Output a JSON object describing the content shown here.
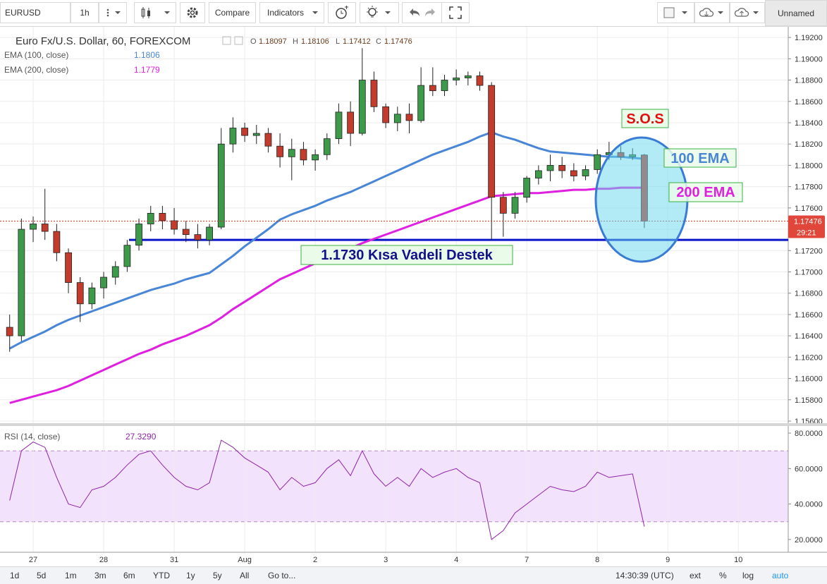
{
  "toolbar": {
    "symbol": "EURUSD",
    "interval": "1h",
    "compare": "Compare",
    "indicators": "Indicators",
    "layout": "Unnamed"
  },
  "bottom_bar": {
    "ranges": [
      "1d",
      "5d",
      "1m",
      "3m",
      "6m",
      "YTD",
      "1y",
      "5y",
      "All"
    ],
    "goto": "Go to...",
    "time": "14:30:39 (UTC)",
    "options": [
      "ext",
      "%",
      "log",
      "auto"
    ]
  },
  "chart_data": [
    {
      "type": "candlestick",
      "title": "Euro Fx/U.S. Dollar, 60, FOREXCOM",
      "ohlc_labels": [
        "O",
        "H",
        "L",
        "C"
      ],
      "categories": [
        null,
        null,
        "27",
        null,
        null,
        null,
        null,
        null,
        "28",
        null,
        null,
        null,
        null,
        null,
        "31",
        null,
        null,
        null,
        null,
        null,
        "Aug",
        null,
        null,
        null,
        null,
        null,
        "2",
        null,
        null,
        null,
        null,
        null,
        "3",
        null,
        null,
        null,
        null,
        null,
        "4",
        null,
        null,
        null,
        null,
        null,
        "7",
        null,
        null,
        null,
        null,
        null,
        "8",
        null,
        null,
        null,
        null,
        null,
        "9",
        null,
        null,
        null,
        null,
        null,
        "10"
      ],
      "open": [
        1.1648,
        1.164,
        1.174,
        1.1745,
        1.1738,
        1.1718,
        1.169,
        1.167,
        1.1685,
        1.1695,
        1.1705,
        1.1725,
        1.1745,
        1.1755,
        1.1748,
        1.174,
        1.1735,
        1.173,
        1.1742,
        1.182,
        1.1835,
        1.1828,
        1.183,
        1.1818,
        1.1808,
        1.1815,
        1.1805,
        1.181,
        1.1825,
        1.185,
        1.183,
        1.188,
        1.1855,
        1.184,
        1.1848,
        1.1842,
        1.1875,
        1.187,
        1.188,
        1.1882,
        1.1884,
        1.1875,
        1.177,
        1.1755,
        1.177,
        1.1788,
        1.1795,
        1.18,
        1.1795,
        1.179,
        1.1796,
        1.181,
        1.1812,
        1.1808,
        1.18097,
        null,
        null,
        null,
        null,
        null,
        null,
        null,
        null
      ],
      "high": [
        1.166,
        1.175,
        1.1752,
        1.1778,
        1.1745,
        1.1722,
        1.1695,
        1.169,
        1.17,
        1.171,
        1.173,
        1.175,
        1.1762,
        1.1762,
        1.176,
        1.1748,
        1.1745,
        1.1745,
        1.1835,
        1.1845,
        1.184,
        1.1838,
        1.1835,
        1.183,
        1.1825,
        1.1822,
        1.1815,
        1.183,
        1.1858,
        1.186,
        1.191,
        1.1888,
        1.1858,
        1.1855,
        1.1858,
        1.1892,
        1.1892,
        1.1885,
        1.189,
        1.1888,
        1.1888,
        1.1878,
        1.1775,
        1.1775,
        1.179,
        1.18,
        1.181,
        1.1808,
        1.1802,
        1.18,
        1.1815,
        1.1822,
        1.1818,
        1.1816,
        1.18106,
        null,
        null,
        null,
        null,
        null,
        null,
        null,
        null
      ],
      "low": [
        1.1625,
        1.1635,
        1.1728,
        1.173,
        1.171,
        1.168,
        1.1653,
        1.1665,
        1.1675,
        1.1688,
        1.17,
        1.172,
        1.1738,
        1.174,
        1.1735,
        1.1728,
        1.1722,
        1.1725,
        1.174,
        1.1812,
        1.1822,
        1.182,
        1.1812,
        1.1798,
        1.1786,
        1.18,
        1.1795,
        1.1805,
        1.182,
        1.1818,
        1.1828,
        1.185,
        1.1835,
        1.1832,
        1.183,
        1.184,
        1.1865,
        1.1865,
        1.1875,
        1.1875,
        1.187,
        1.173,
        1.1733,
        1.175,
        1.1765,
        1.1782,
        1.1785,
        1.1788,
        1.1785,
        1.1786,
        1.1792,
        1.1805,
        1.1805,
        1.1805,
        1.17412,
        null,
        null,
        null,
        null,
        null,
        null,
        null,
        null
      ],
      "close": [
        1.164,
        1.174,
        1.1745,
        1.1738,
        1.1718,
        1.169,
        1.167,
        1.1685,
        1.1695,
        1.1705,
        1.1725,
        1.1745,
        1.1755,
        1.1748,
        1.174,
        1.1735,
        1.173,
        1.1742,
        1.182,
        1.1835,
        1.1828,
        1.183,
        1.1818,
        1.1808,
        1.1815,
        1.1805,
        1.181,
        1.1825,
        1.185,
        1.183,
        1.188,
        1.1855,
        1.184,
        1.1848,
        1.1842,
        1.1875,
        1.187,
        1.188,
        1.1882,
        1.1884,
        1.1875,
        1.177,
        1.1755,
        1.177,
        1.1788,
        1.1795,
        1.18,
        1.1795,
        1.179,
        1.1796,
        1.181,
        1.1812,
        1.1808,
        1.181,
        1.17476,
        null,
        null,
        null,
        null,
        null,
        null,
        null,
        null
      ],
      "up_color": "#3c9a4a",
      "down_color": "#c23b2c",
      "series": [
        {
          "name": "EMA (100, close)",
          "color": "#4a86d6",
          "values": [
            1.1628,
            1.1634,
            1.1639,
            1.1644,
            1.165,
            1.1655,
            1.1659,
            1.1663,
            1.1667,
            1.1671,
            1.1675,
            1.1679,
            1.1683,
            1.1686,
            1.1689,
            1.1693,
            1.1696,
            1.1699,
            1.1707,
            1.1715,
            1.1724,
            1.1732,
            1.174,
            1.1749,
            1.1754,
            1.1758,
            1.1762,
            1.1767,
            1.1771,
            1.1775,
            1.178,
            1.1785,
            1.179,
            1.1795,
            1.18,
            1.1805,
            1.181,
            1.1814,
            1.1818,
            1.1822,
            1.1827,
            1.1831,
            1.1827,
            1.1824,
            1.182,
            1.1816,
            1.1813,
            1.1812,
            1.1811,
            1.181,
            1.1809,
            1.1808,
            1.1808,
            1.1807,
            1.1806,
            null,
            null,
            null,
            null,
            null,
            null,
            null,
            null
          ]
        },
        {
          "name": "EMA (200, close)",
          "color": "#e020e0",
          "values": [
            1.1577,
            1.158,
            1.1583,
            1.1586,
            1.1589,
            1.1593,
            1.1598,
            1.1603,
            1.1608,
            1.1613,
            1.1618,
            1.1623,
            1.1627,
            1.1632,
            1.1636,
            1.164,
            1.1645,
            1.165,
            1.1657,
            1.1665,
            1.1672,
            1.1679,
            1.1686,
            1.1693,
            1.1698,
            1.1703,
            1.1708,
            1.1713,
            1.1718,
            1.1722,
            1.1727,
            1.1731,
            1.1735,
            1.1739,
            1.1743,
            1.1747,
            1.1751,
            1.1755,
            1.1759,
            1.1763,
            1.1767,
            1.1771,
            1.1772,
            1.1773,
            1.1774,
            1.1774,
            1.1775,
            1.1776,
            1.1777,
            1.1777,
            1.1778,
            1.1778,
            1.1779,
            1.1779,
            1.1779,
            null,
            null,
            null,
            null,
            null,
            null,
            null,
            null
          ]
        }
      ],
      "ylim": [
        1.1558,
        1.193
      ],
      "yticks": [
        {
          "value": 1.156,
          "label": "1.15600"
        },
        {
          "value": 1.158,
          "label": "1.15800"
        },
        {
          "value": 1.16,
          "label": "1.16000"
        },
        {
          "value": 1.162,
          "label": "1.16200"
        },
        {
          "value": 1.164,
          "label": "1.16400"
        },
        {
          "value": 1.166,
          "label": "1.16600"
        },
        {
          "value": 1.168,
          "label": "1.16800"
        },
        {
          "value": 1.17,
          "label": "1.17000"
        },
        {
          "value": 1.172,
          "label": "1.17200"
        },
        {
          "value": 1.174,
          "label": "1.17400"
        },
        {
          "value": 1.176,
          "label": "1.17600"
        },
        {
          "value": 1.178,
          "label": "1.17800"
        },
        {
          "value": 1.18,
          "label": "1.18000"
        },
        {
          "value": 1.182,
          "label": "1.18200"
        },
        {
          "value": 1.184,
          "label": "1.18400"
        },
        {
          "value": 1.186,
          "label": "1.18600"
        },
        {
          "value": 1.188,
          "label": "1.18800"
        },
        {
          "value": 1.19,
          "label": "1.19000"
        },
        {
          "value": 1.192,
          "label": "1.19200"
        }
      ],
      "grid": true,
      "countdown": "29:21",
      "support": {
        "value": 1.173,
        "color": "#0a14c8"
      },
      "annotations": [
        "S.O.S",
        "100 EMA",
        "200 EMA",
        "1.1730 Kısa Vadeli Destek"
      ]
    },
    {
      "type": "line",
      "series": [
        {
          "name": "RSI (14, close)",
          "color": "#8e24aa",
          "values": [
            42,
            70,
            75,
            72,
            55,
            40,
            38,
            48,
            50,
            55,
            62,
            68,
            70,
            62,
            55,
            50,
            48,
            52,
            76,
            72,
            66,
            62,
            58,
            48,
            55,
            50,
            52,
            60,
            65,
            56,
            70,
            57,
            50,
            55,
            50,
            60,
            55,
            58,
            60,
            55,
            52,
            20,
            25,
            35,
            40,
            45,
            50,
            48,
            47,
            50,
            58,
            55,
            56,
            57,
            27.329,
            null,
            null,
            null,
            null,
            null,
            null,
            null,
            null
          ],
          "value_labels": [
            null,
            null,
            null,
            null,
            null,
            null,
            null,
            null,
            null,
            null,
            null,
            null,
            null,
            null,
            null,
            null,
            null,
            null,
            null,
            null,
            null,
            null,
            null,
            null,
            null,
            null,
            null,
            null,
            null,
            null,
            null,
            null,
            null,
            null,
            null,
            null,
            null,
            null,
            null,
            null,
            null,
            null,
            null,
            null,
            null,
            null,
            null,
            null,
            null,
            null,
            null,
            null,
            null,
            null,
            "27.3290",
            null,
            null,
            null,
            null,
            null,
            null,
            null,
            null
          ]
        }
      ],
      "ylim": [
        12.8,
        84
      ],
      "yticks": [
        {
          "value": 20,
          "label": "20.0000"
        },
        {
          "value": 40,
          "label": "40.0000"
        },
        {
          "value": 60,
          "label": "60.0000"
        },
        {
          "value": 80,
          "label": "80.0000"
        }
      ],
      "bands": [
        30,
        70
      ],
      "band_color": "#f3e2fb"
    }
  ]
}
